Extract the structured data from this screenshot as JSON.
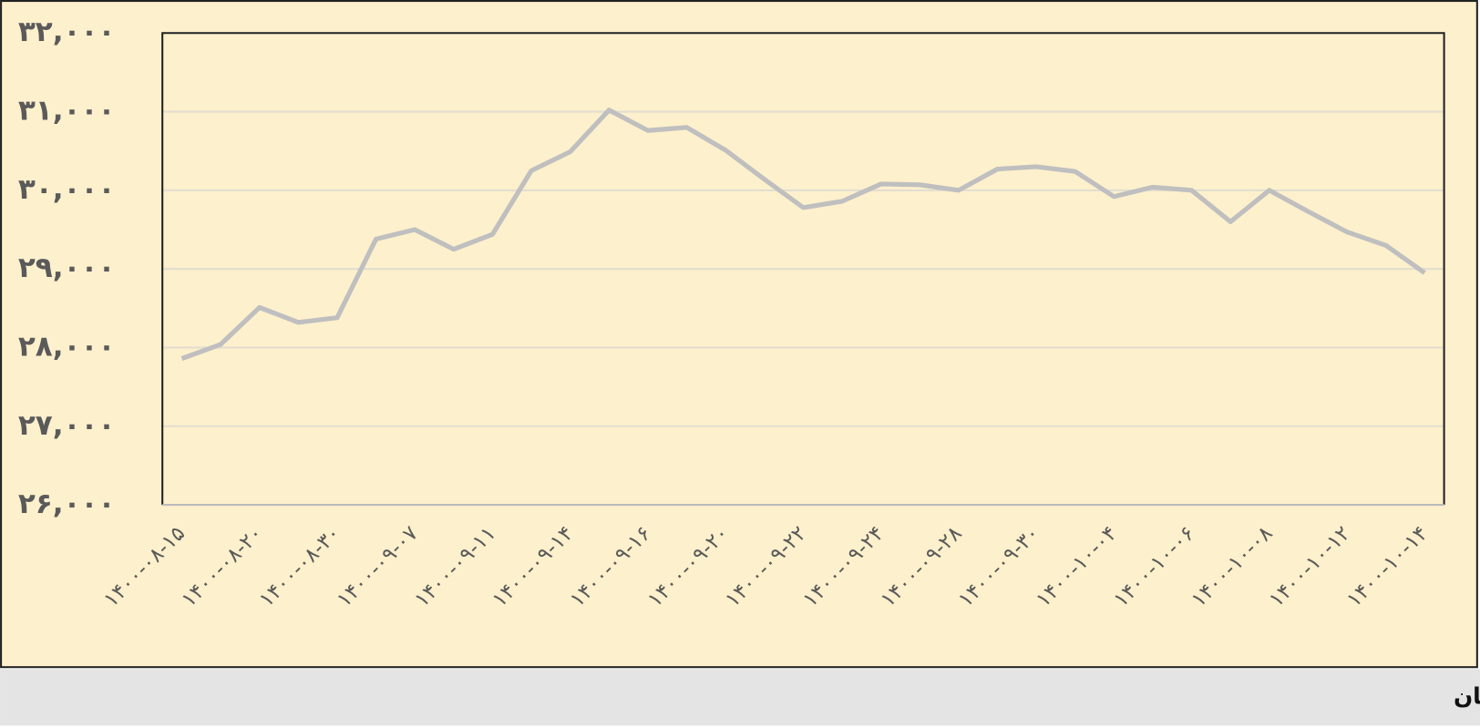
{
  "chart_data": {
    "type": "line",
    "caption": "قیمت دلار از نیمه آبان ماه تاکنون - ارقام به تومان",
    "categories": [
      "۱۴۰۰-۰۸-۱۵",
      null,
      "۱۴۰۰-۰۸-۲۰",
      null,
      "۱۴۰۰-۰۸-۳۰",
      null,
      "۱۴۰۰-۰۹-۰۷",
      null,
      "۱۴۰۰-۰۹-۱۱",
      null,
      "۱۴۰۰-۰۹-۱۴",
      null,
      "۱۴۰۰-۰۹-۱۶",
      null,
      "۱۴۰۰-۰۹-۲۰",
      null,
      "۱۴۰۰-۰۹-۲۲",
      null,
      "۱۴۰۰-۰۹-۲۴",
      null,
      "۱۴۰۰-۰۹-۲۸",
      null,
      "۱۴۰۰-۰۹-۳۰",
      null,
      "۱۴۰۰-۱۰-۰۴",
      null,
      "۱۴۰۰-۱۰-۰۶",
      null,
      "۱۴۰۰-۱۰-۰۸",
      null,
      "۱۴۰۰-۱۰-۱۲",
      null,
      "۱۴۰۰-۱۰-۱۴"
    ],
    "values": [
      27860,
      28040,
      28510,
      28320,
      28380,
      29380,
      29500,
      29250,
      29440,
      30250,
      30490,
      31020,
      30760,
      30800,
      30510,
      30140,
      29780,
      29860,
      30080,
      30070,
      30000,
      30270,
      30300,
      30240,
      29920,
      30040,
      30000,
      29600,
      30000,
      29730,
      29470,
      29300,
      28950
    ],
    "color": "#bfbfbf",
    "ylim": [
      26000,
      32000
    ],
    "yticks": [
      {
        "value": 26000,
        "label": "۲۶,۰۰۰"
      },
      {
        "value": 27000,
        "label": "۲۷,۰۰۰"
      },
      {
        "value": 28000,
        "label": "۲۸,۰۰۰"
      },
      {
        "value": 29000,
        "label": "۲۹,۰۰۰"
      },
      {
        "value": 30000,
        "label": "۳۰,۰۰۰"
      },
      {
        "value": 31000,
        "label": "۳۱,۰۰۰"
      },
      {
        "value": 32000,
        "label": "۳۲,۰۰۰"
      }
    ],
    "grid": true
  }
}
